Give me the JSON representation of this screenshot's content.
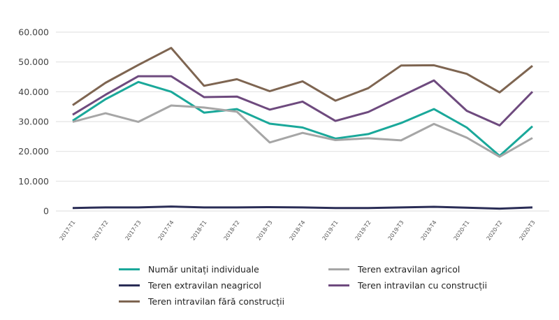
{
  "chart_data": {
    "type": "line",
    "title": "",
    "xlabel": "",
    "ylabel": "",
    "ylim": [
      0,
      60000
    ],
    "yticks": [
      0,
      10000,
      20000,
      30000,
      40000,
      50000,
      60000
    ],
    "ytick_labels": [
      "0",
      "10.000",
      "20.000",
      "30.000",
      "40.000",
      "50.000",
      "60.000"
    ],
    "grid": true,
    "legend_position": "bottom",
    "categories": [
      "2017-T1",
      "2017-T2",
      "2017-T3",
      "2017-T4",
      "2018-T1",
      "2018-T2",
      "2018-T3",
      "2018-T4",
      "2019-T1",
      "2019-T2",
      "2019-T3",
      "2019-T4",
      "2020-T1",
      "2020-T2",
      "2020-T3"
    ],
    "series": [
      {
        "name": "Număr unitați individuale",
        "color": "#1aa89a",
        "values": [
          30300,
          37500,
          43300,
          40000,
          33000,
          34200,
          29300,
          28000,
          24300,
          25800,
          29500,
          34200,
          28000,
          18500,
          28400
        ]
      },
      {
        "name": "Teren extravilan agricol",
        "color": "#a6a6a6",
        "values": [
          29900,
          32800,
          29900,
          35400,
          34700,
          33300,
          23000,
          26200,
          23800,
          24400,
          23700,
          29200,
          24600,
          18200,
          24500
        ]
      },
      {
        "name": "Teren extravilan neagricol",
        "color": "#2a2d56",
        "values": [
          1000,
          1200,
          1200,
          1500,
          1200,
          1200,
          1300,
          1200,
          1000,
          1000,
          1200,
          1400,
          1100,
          800,
          1200
        ]
      },
      {
        "name": "Teren intravilan cu construcții",
        "color": "#6e4a7e",
        "values": [
          32300,
          39000,
          45200,
          45200,
          38200,
          38400,
          34000,
          36700,
          30200,
          33200,
          38500,
          43800,
          33600,
          28700,
          40000
        ]
      },
      {
        "name": "Teren intravilan fără construcții",
        "color": "#7e6551",
        "values": [
          35500,
          43000,
          49000,
          54700,
          42000,
          44200,
          40200,
          43500,
          37000,
          41200,
          48800,
          48900,
          46000,
          39800,
          48700
        ]
      }
    ]
  }
}
